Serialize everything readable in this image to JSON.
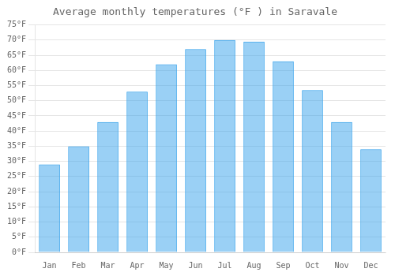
{
  "chart_data": {
    "type": "bar",
    "title": "Average monthly temperatures (°F ) in Saravale",
    "categories": [
      "Jan",
      "Feb",
      "Mar",
      "Apr",
      "May",
      "Jun",
      "Jul",
      "Aug",
      "Sep",
      "Oct",
      "Nov",
      "Dec"
    ],
    "values": [
      29,
      35,
      43,
      53,
      62,
      67,
      70,
      69.5,
      63,
      53.5,
      43,
      34
    ],
    "ylim": [
      0,
      75
    ],
    "yticks": [
      {
        "value": 0,
        "label": "0°F"
      },
      {
        "value": 5,
        "label": "5°F"
      },
      {
        "value": 10,
        "label": "10°F"
      },
      {
        "value": 15,
        "label": "15°F"
      },
      {
        "value": 20,
        "label": "20°F"
      },
      {
        "value": 25,
        "label": "25°F"
      },
      {
        "value": 30,
        "label": "30°F"
      },
      {
        "value": 35,
        "label": "35°F"
      },
      {
        "value": 40,
        "label": "40°F"
      },
      {
        "value": 45,
        "label": "45°F"
      },
      {
        "value": 50,
        "label": "50°F"
      },
      {
        "value": 55,
        "label": "55°F"
      },
      {
        "value": 60,
        "label": "60°F"
      },
      {
        "value": 65,
        "label": "65°F"
      },
      {
        "value": 70,
        "label": "70°F"
      },
      {
        "value": 75,
        "label": "75°F"
      }
    ],
    "grid": true
  }
}
